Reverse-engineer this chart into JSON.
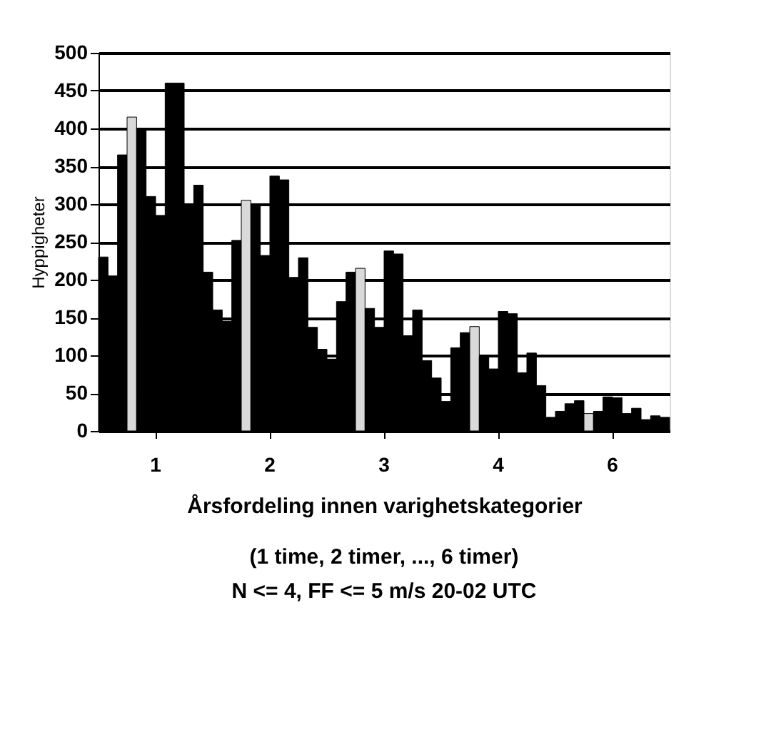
{
  "chart_data": {
    "type": "bar",
    "ylabel": "Hyppigheter",
    "xlabel": "Årsfordeling innen varighetskategorier",
    "annotations": [
      "(1 time, 2 timer, ..., 6 timer)",
      "N <= 4, FF <= 5 m/s  20-02 UTC"
    ],
    "categories": [
      "1",
      "2",
      "3",
      "4",
      "6"
    ],
    "series": [
      {
        "color": "#000000",
        "values": [
          230,
          160,
          95,
          39,
          26
        ]
      },
      {
        "color": "#000000",
        "values": [
          205,
          145,
          171,
          110,
          36
        ]
      },
      {
        "color": "#000000",
        "values": [
          365,
          252,
          210,
          130,
          40
        ]
      },
      {
        "color": "#d9d9d9",
        "values": [
          415,
          305,
          215,
          138,
          23
        ]
      },
      {
        "color": "#000000",
        "values": [
          400,
          300,
          162,
          98,
          26
        ]
      },
      {
        "color": "#000000",
        "values": [
          310,
          232,
          137,
          82,
          45
        ]
      },
      {
        "color": "#000000",
        "values": [
          285,
          337,
          238,
          158,
          44
        ]
      },
      {
        "color": "#000000",
        "values": [
          460,
          332,
          234,
          155,
          23
        ]
      },
      {
        "color": "#000000",
        "values": [
          460,
          203,
          126,
          77,
          30
        ]
      },
      {
        "color": "#000000",
        "values": [
          300,
          229,
          160,
          103,
          15
        ]
      },
      {
        "color": "#000000",
        "values": [
          325,
          137,
          93,
          60,
          20
        ]
      },
      {
        "color": "#000000",
        "values": [
          210,
          108,
          70,
          18,
          18
        ]
      }
    ],
    "ylim": [
      0,
      500
    ],
    "yticks": [
      0,
      50,
      100,
      150,
      200,
      250,
      300,
      350,
      400,
      450,
      500
    ],
    "grid": "y"
  }
}
